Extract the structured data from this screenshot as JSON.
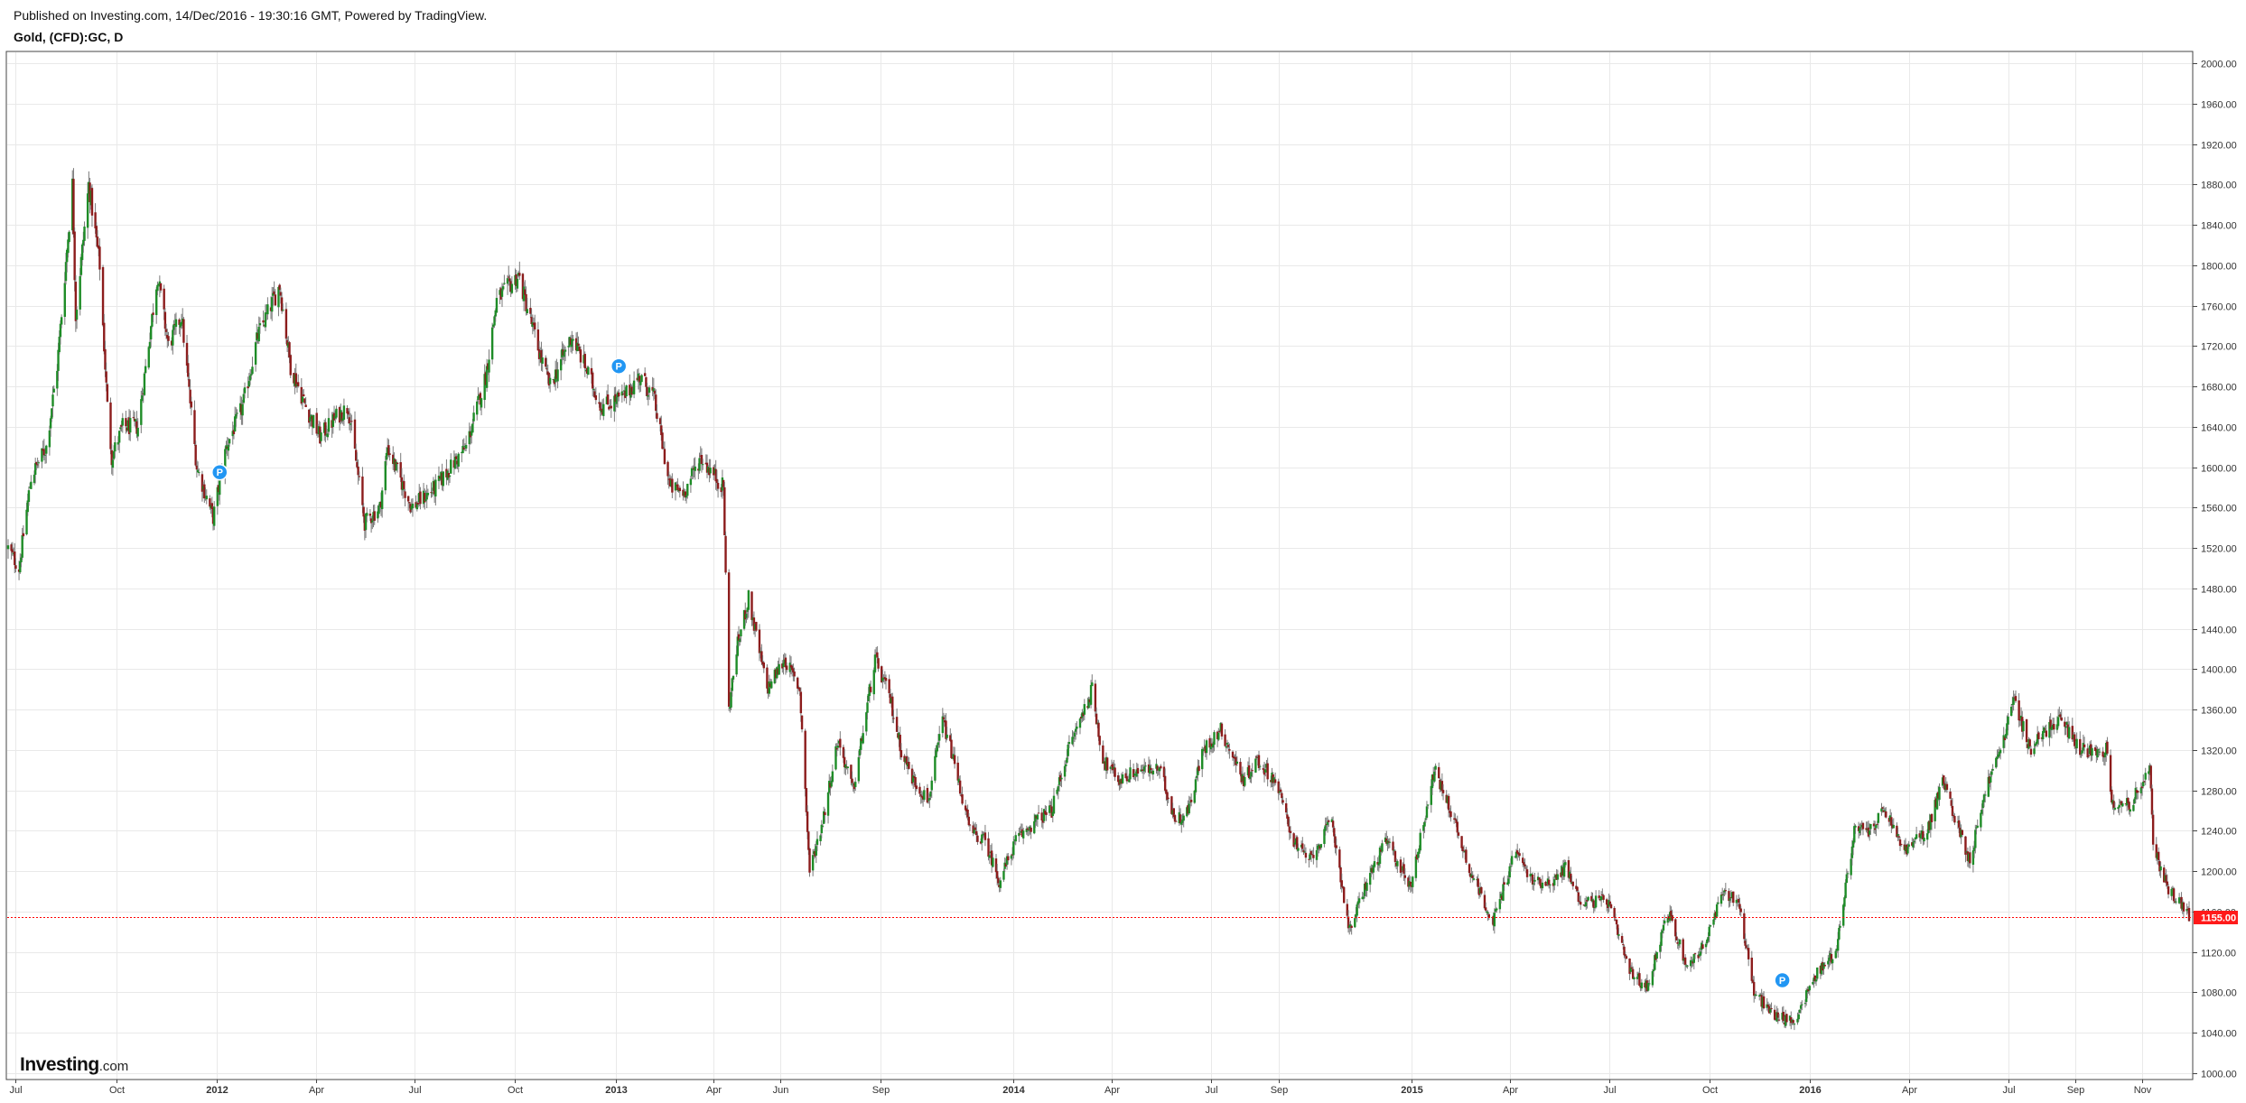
{
  "header": {
    "published": "Published on Investing.com, 14/Dec/2016 - 19:30:16 GMT, Powered by TradingView.",
    "symbol": "Gold, (CFD):GC, D"
  },
  "logo": {
    "main": "Investing",
    "suffix": ".com"
  },
  "colors": {
    "up": "#1e8c27",
    "down": "#8c1c1c",
    "wick": "#7a7a7a",
    "grid": "#e9e9e9",
    "price_line": "#ff0000",
    "price_label_bg": "#ff1a1a",
    "idea_marker": "#2196f3"
  },
  "chart_data": {
    "type": "candlestick",
    "title": "",
    "xlabel": "",
    "ylabel": "",
    "x_range": [
      "2011-06-24",
      "2016-12-14"
    ],
    "ylim": [
      1000,
      2000
    ],
    "grid": true,
    "current_price": 1155.0,
    "current_price_label": "1155.00",
    "y_ticks": [
      "2000.00",
      "1960.00",
      "1920.00",
      "1880.00",
      "1840.00",
      "1800.00",
      "1760.00",
      "1720.00",
      "1680.00",
      "1640.00",
      "1600.00",
      "1560.00",
      "1520.00",
      "1480.00",
      "1440.00",
      "1400.00",
      "1360.00",
      "1320.00",
      "1280.00",
      "1240.00",
      "1200.00",
      "1160.00",
      "1120.00",
      "1080.00",
      "1040.00",
      "1000.00"
    ],
    "x_ticks": [
      {
        "label": "Jul",
        "date": "2011-07-01",
        "bold": false
      },
      {
        "label": "Oct",
        "date": "2011-10-01",
        "bold": false
      },
      {
        "label": "2012",
        "date": "2012-01-01",
        "bold": true
      },
      {
        "label": "Apr",
        "date": "2012-04-01",
        "bold": false
      },
      {
        "label": "Jul",
        "date": "2012-07-01",
        "bold": false
      },
      {
        "label": "Oct",
        "date": "2012-10-01",
        "bold": false
      },
      {
        "label": "2013",
        "date": "2013-01-01",
        "bold": true
      },
      {
        "label": "Apr",
        "date": "2013-04-01",
        "bold": false
      },
      {
        "label": "Jun",
        "date": "2013-06-01",
        "bold": false
      },
      {
        "label": "Sep",
        "date": "2013-09-01",
        "bold": false
      },
      {
        "label": "2014",
        "date": "2014-01-01",
        "bold": true
      },
      {
        "label": "Apr",
        "date": "2014-04-01",
        "bold": false
      },
      {
        "label": "Jul",
        "date": "2014-07-01",
        "bold": false
      },
      {
        "label": "Sep",
        "date": "2014-09-01",
        "bold": false
      },
      {
        "label": "2015",
        "date": "2015-01-01",
        "bold": true
      },
      {
        "label": "Apr",
        "date": "2015-04-01",
        "bold": false
      },
      {
        "label": "Jul",
        "date": "2015-07-01",
        "bold": false
      },
      {
        "label": "Oct",
        "date": "2015-10-01",
        "bold": false
      },
      {
        "label": "2016",
        "date": "2016-01-01",
        "bold": true
      },
      {
        "label": "Apr",
        "date": "2016-04-01",
        "bold": false
      },
      {
        "label": "Jul",
        "date": "2016-07-01",
        "bold": false
      },
      {
        "label": "Sep",
        "date": "2016-09-01",
        "bold": false
      },
      {
        "label": "Nov",
        "date": "2016-11-01",
        "bold": false
      }
    ],
    "price_path": [
      [
        "2011-06-24",
        1520
      ],
      [
        "2011-07-04",
        1500
      ],
      [
        "2011-07-15",
        1590
      ],
      [
        "2011-07-29",
        1620
      ],
      [
        "2011-08-08",
        1700
      ],
      [
        "2011-08-22",
        1880
      ],
      [
        "2011-08-25",
        1750
      ],
      [
        "2011-09-06",
        1880
      ],
      [
        "2011-09-16",
        1800
      ],
      [
        "2011-09-23",
        1660
      ],
      [
        "2011-09-27",
        1610
      ],
      [
        "2011-10-07",
        1640
      ],
      [
        "2011-10-21",
        1640
      ],
      [
        "2011-11-08",
        1790
      ],
      [
        "2011-11-18",
        1720
      ],
      [
        "2011-11-30",
        1750
      ],
      [
        "2011-12-14",
        1600
      ],
      [
        "2011-12-29",
        1550
      ],
      [
        "2012-01-10",
        1620
      ],
      [
        "2012-01-25",
        1660
      ],
      [
        "2012-02-08",
        1730
      ],
      [
        "2012-02-28",
        1780
      ],
      [
        "2012-03-09",
        1700
      ],
      [
        "2012-03-23",
        1660
      ],
      [
        "2012-04-05",
        1630
      ],
      [
        "2012-04-20",
        1650
      ],
      [
        "2012-05-01",
        1660
      ],
      [
        "2012-05-16",
        1545
      ],
      [
        "2012-05-30",
        1560
      ],
      [
        "2012-06-06",
        1620
      ],
      [
        "2012-06-28",
        1560
      ],
      [
        "2012-07-20",
        1580
      ],
      [
        "2012-08-03",
        1600
      ],
      [
        "2012-08-17",
        1620
      ],
      [
        "2012-09-04",
        1690
      ],
      [
        "2012-09-14",
        1765
      ],
      [
        "2012-10-04",
        1790
      ],
      [
        "2012-10-24",
        1710
      ],
      [
        "2012-11-02",
        1680
      ],
      [
        "2012-11-22",
        1730
      ],
      [
        "2012-12-04",
        1700
      ],
      [
        "2012-12-19",
        1660
      ],
      [
        "2013-01-09",
        1670
      ],
      [
        "2013-01-23",
        1690
      ],
      [
        "2013-02-05",
        1670
      ],
      [
        "2013-02-20",
        1580
      ],
      [
        "2013-03-05",
        1575
      ],
      [
        "2013-03-20",
        1610
      ],
      [
        "2013-04-10",
        1580
      ],
      [
        "2013-04-15",
        1360
      ],
      [
        "2013-04-22",
        1420
      ],
      [
        "2013-05-03",
        1470
      ],
      [
        "2013-05-20",
        1380
      ],
      [
        "2013-06-05",
        1410
      ],
      [
        "2013-06-19",
        1380
      ],
      [
        "2013-06-28",
        1200
      ],
      [
        "2013-07-10",
        1250
      ],
      [
        "2013-07-24",
        1330
      ],
      [
        "2013-08-07",
        1280
      ],
      [
        "2013-08-27",
        1410
      ],
      [
        "2013-09-10",
        1370
      ],
      [
        "2013-09-20",
        1320
      ],
      [
        "2013-10-01",
        1290
      ],
      [
        "2013-10-15",
        1270
      ],
      [
        "2013-10-28",
        1350
      ],
      [
        "2013-11-07",
        1310
      ],
      [
        "2013-11-22",
        1240
      ],
      [
        "2013-12-06",
        1230
      ],
      [
        "2013-12-19",
        1190
      ],
      [
        "2014-01-03",
        1230
      ],
      [
        "2014-01-21",
        1250
      ],
      [
        "2014-02-05",
        1260
      ],
      [
        "2014-02-20",
        1320
      ],
      [
        "2014-03-14",
        1380
      ],
      [
        "2014-03-24",
        1310
      ],
      [
        "2014-04-08",
        1290
      ],
      [
        "2014-04-25",
        1300
      ],
      [
        "2014-05-15",
        1300
      ],
      [
        "2014-05-30",
        1250
      ],
      [
        "2014-06-10",
        1260
      ],
      [
        "2014-06-24",
        1320
      ],
      [
        "2014-07-10",
        1340
      ],
      [
        "2014-07-31",
        1290
      ],
      [
        "2014-08-12",
        1310
      ],
      [
        "2014-08-29",
        1290
      ],
      [
        "2014-09-15",
        1230
      ],
      [
        "2014-09-29",
        1210
      ],
      [
        "2014-10-20",
        1250
      ],
      [
        "2014-11-05",
        1140
      ],
      [
        "2014-11-21",
        1190
      ],
      [
        "2014-12-09",
        1230
      ],
      [
        "2014-12-31",
        1185
      ],
      [
        "2015-01-22",
        1300
      ],
      [
        "2015-02-06",
        1260
      ],
      [
        "2015-02-24",
        1200
      ],
      [
        "2015-03-17",
        1150
      ],
      [
        "2015-04-06",
        1220
      ],
      [
        "2015-04-22",
        1190
      ],
      [
        "2015-05-12",
        1190
      ],
      [
        "2015-05-22",
        1205
      ],
      [
        "2015-06-05",
        1170
      ],
      [
        "2015-06-30",
        1170
      ],
      [
        "2015-07-20",
        1100
      ],
      [
        "2015-08-05",
        1085
      ],
      [
        "2015-08-24",
        1160
      ],
      [
        "2015-09-11",
        1105
      ],
      [
        "2015-09-28",
        1130
      ],
      [
        "2015-10-14",
        1180
      ],
      [
        "2015-10-28",
        1170
      ],
      [
        "2015-11-11",
        1080
      ],
      [
        "2015-11-27",
        1060
      ],
      [
        "2015-12-17",
        1050
      ],
      [
        "2016-01-08",
        1100
      ],
      [
        "2016-01-25",
        1120
      ],
      [
        "2016-02-11",
        1240
      ],
      [
        "2016-02-25",
        1240
      ],
      [
        "2016-03-10",
        1260
      ],
      [
        "2016-03-28",
        1220
      ],
      [
        "2016-04-18",
        1240
      ],
      [
        "2016-05-02",
        1290
      ],
      [
        "2016-05-27",
        1210
      ],
      [
        "2016-06-10",
        1280
      ],
      [
        "2016-06-24",
        1320
      ],
      [
        "2016-07-06",
        1370
      ],
      [
        "2016-07-22",
        1320
      ],
      [
        "2016-08-05",
        1340
      ],
      [
        "2016-08-18",
        1350
      ],
      [
        "2016-09-06",
        1320
      ],
      [
        "2016-09-30",
        1320
      ],
      [
        "2016-10-04",
        1270
      ],
      [
        "2016-10-20",
        1265
      ],
      [
        "2016-11-08",
        1300
      ],
      [
        "2016-11-11",
        1225
      ],
      [
        "2016-11-24",
        1185
      ],
      [
        "2016-12-05",
        1170
      ],
      [
        "2016-12-14",
        1155
      ]
    ],
    "idea_markers": [
      {
        "label": "P",
        "date": "2012-01-04",
        "price": 1595
      },
      {
        "label": "P",
        "date": "2013-01-04",
        "price": 1700
      },
      {
        "label": "P",
        "date": "2015-12-07",
        "price": 1092
      }
    ]
  }
}
